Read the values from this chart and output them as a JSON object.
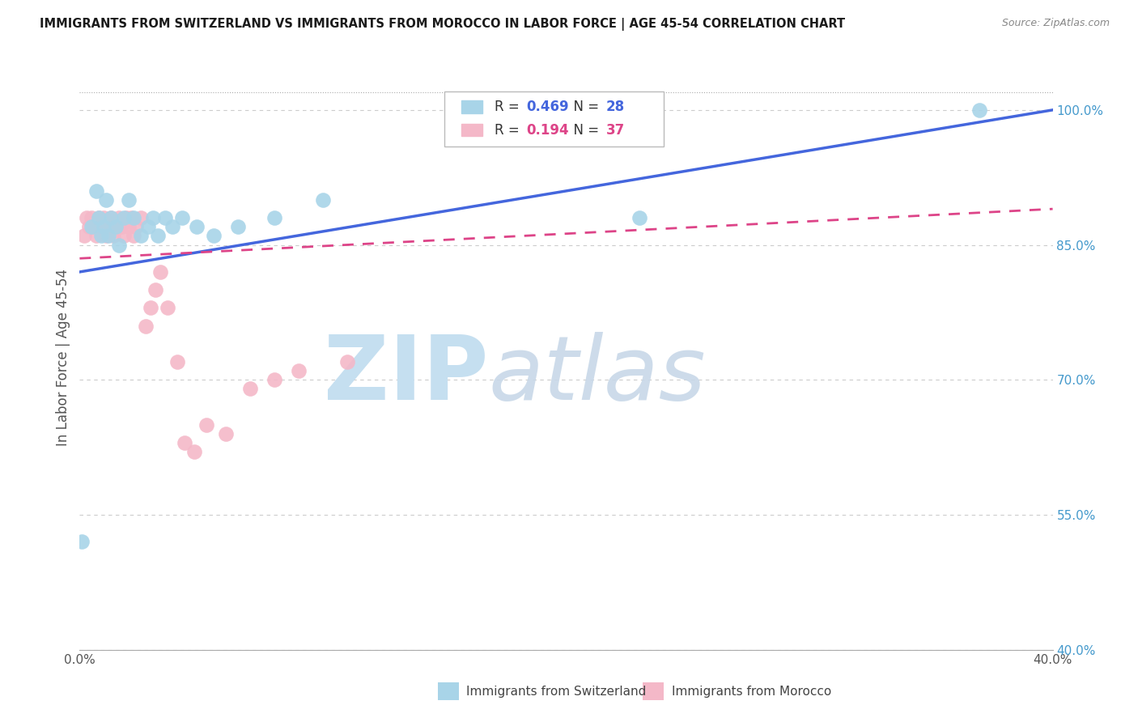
{
  "title": "IMMIGRANTS FROM SWITZERLAND VS IMMIGRANTS FROM MOROCCO IN LABOR FORCE | AGE 45-54 CORRELATION CHART",
  "source": "Source: ZipAtlas.com",
  "ylabel": "In Labor Force | Age 45-54",
  "xlim": [
    0.0,
    0.4
  ],
  "ylim": [
    0.4,
    1.05
  ],
  "xticks": [
    0.0,
    0.05,
    0.1,
    0.15,
    0.2,
    0.25,
    0.3,
    0.35,
    0.4
  ],
  "xtick_labels": [
    "0.0%",
    "",
    "",
    "",
    "",
    "",
    "",
    "",
    "40.0%"
  ],
  "yticks": [
    0.4,
    0.55,
    0.7,
    0.85,
    1.0
  ],
  "ytick_labels": [
    "40.0%",
    "55.0%",
    "70.0%",
    "85.0%",
    "100.0%"
  ],
  "background_color": "#ffffff",
  "grid_color": "#cccccc",
  "switzerland_color": "#a8d4e8",
  "morocco_color": "#f4b8c8",
  "switzerland_R": 0.469,
  "switzerland_N": 28,
  "morocco_R": 0.194,
  "morocco_N": 37,
  "switzerland_line_color": "#4466dd",
  "morocco_line_color": "#dd4488",
  "switzerland_line_style": "solid",
  "morocco_line_style": "dashed",
  "sw_x": [
    0.001,
    0.005,
    0.007,
    0.008,
    0.009,
    0.01,
    0.011,
    0.012,
    0.013,
    0.015,
    0.016,
    0.018,
    0.02,
    0.022,
    0.025,
    0.028,
    0.03,
    0.032,
    0.035,
    0.038,
    0.042,
    0.048,
    0.055,
    0.065,
    0.08,
    0.1,
    0.23,
    0.37
  ],
  "sw_y": [
    0.52,
    0.87,
    0.91,
    0.88,
    0.86,
    0.87,
    0.9,
    0.86,
    0.88,
    0.87,
    0.85,
    0.88,
    0.9,
    0.88,
    0.86,
    0.87,
    0.88,
    0.86,
    0.88,
    0.87,
    0.88,
    0.87,
    0.86,
    0.87,
    0.88,
    0.9,
    0.88,
    1.0
  ],
  "mo_x": [
    0.002,
    0.003,
    0.004,
    0.005,
    0.006,
    0.007,
    0.008,
    0.009,
    0.01,
    0.011,
    0.012,
    0.013,
    0.014,
    0.015,
    0.016,
    0.017,
    0.018,
    0.019,
    0.02,
    0.021,
    0.022,
    0.023,
    0.025,
    0.027,
    0.029,
    0.031,
    0.033,
    0.036,
    0.04,
    0.043,
    0.047,
    0.052,
    0.06,
    0.07,
    0.08,
    0.09,
    0.11
  ],
  "mo_y": [
    0.86,
    0.88,
    0.87,
    0.88,
    0.87,
    0.86,
    0.88,
    0.87,
    0.88,
    0.86,
    0.87,
    0.88,
    0.86,
    0.87,
    0.88,
    0.87,
    0.86,
    0.88,
    0.87,
    0.88,
    0.86,
    0.87,
    0.88,
    0.76,
    0.78,
    0.8,
    0.82,
    0.78,
    0.72,
    0.63,
    0.62,
    0.65,
    0.64,
    0.69,
    0.7,
    0.71,
    0.72
  ],
  "sw_line_x0": 0.0,
  "sw_line_x1": 0.4,
  "sw_line_y0": 0.82,
  "sw_line_y1": 1.0,
  "mo_line_x0": 0.0,
  "mo_line_x1": 0.4,
  "mo_line_y0": 0.835,
  "mo_line_y1": 0.89
}
